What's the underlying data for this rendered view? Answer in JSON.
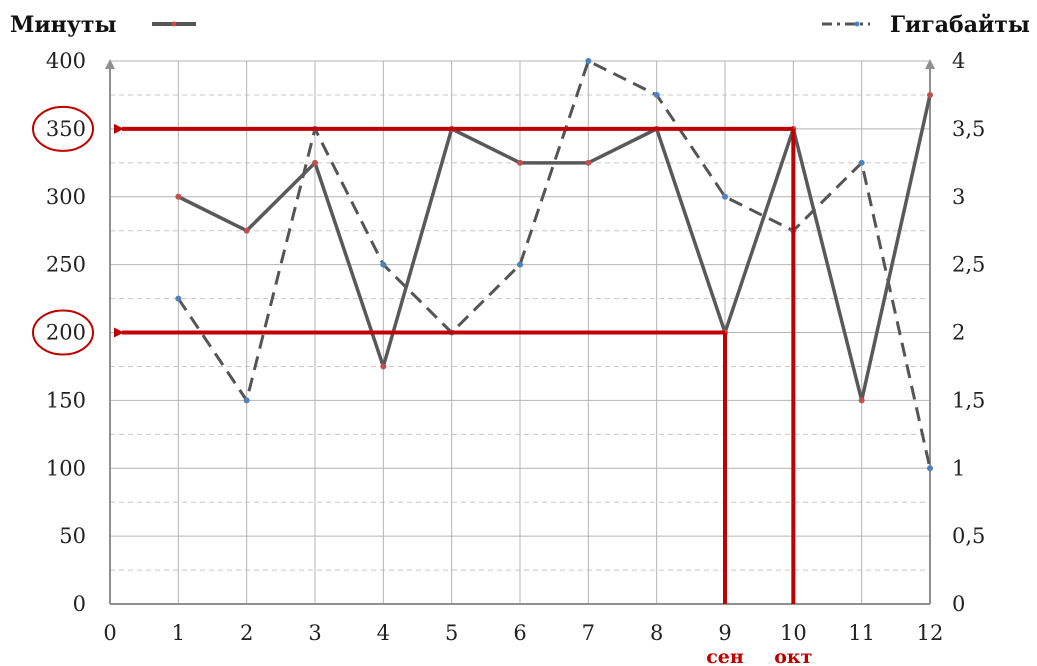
{
  "chart_data": {
    "type": "line",
    "x": [
      1,
      2,
      3,
      4,
      5,
      6,
      7,
      8,
      9,
      10,
      11,
      12
    ],
    "xlim": [
      0,
      12
    ],
    "xticks": [
      "0",
      "1",
      "2",
      "3",
      "4",
      "5",
      "6",
      "7",
      "8",
      "9",
      "10",
      "11",
      "12"
    ],
    "series": [
      {
        "name": "Минуты",
        "axis": "left",
        "style": "solid",
        "values": [
          300,
          275,
          325,
          175,
          350,
          325,
          325,
          350,
          200,
          350,
          150,
          375
        ]
      },
      {
        "name": "Гигабайты",
        "axis": "right",
        "style": "dash-dot",
        "values": [
          2.25,
          1.5,
          3.5,
          2.5,
          2,
          2.5,
          4,
          3.75,
          3,
          2.75,
          3.25,
          1
        ]
      }
    ],
    "ylim_left": [
      0,
      400
    ],
    "yticks_left": [
      "0",
      "50",
      "100",
      "150",
      "200",
      "250",
      "300",
      "350",
      "400"
    ],
    "ylim_right": [
      0,
      4
    ],
    "yticks_right": [
      "0",
      "0,5",
      "1",
      "1,5",
      "2",
      "2,5",
      "3",
      "3,5",
      "4"
    ],
    "grid": true,
    "legend": [
      "top-left",
      "top-right"
    ],
    "annotations": {
      "circled_ticks": [
        "350",
        "200"
      ],
      "highlight_color": "#c00000",
      "month_labels": [
        {
          "x": 9,
          "text": "сен"
        },
        {
          "x": 10,
          "text": "окт"
        }
      ],
      "arrows": [
        {
          "x": 10,
          "y": 350
        },
        {
          "x": 9,
          "y": 200
        }
      ]
    }
  }
}
